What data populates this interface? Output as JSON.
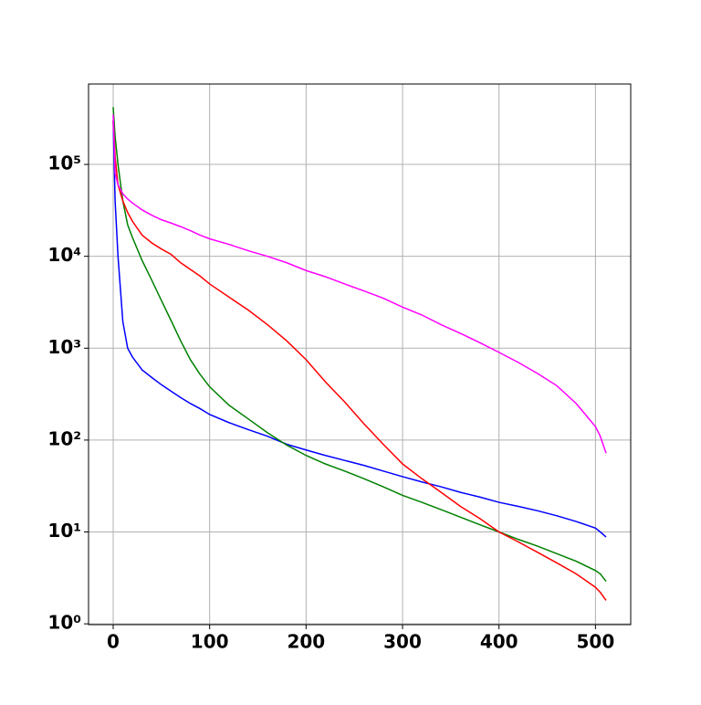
{
  "chart_data": {
    "type": "line",
    "x": [
      0,
      2,
      5,
      10,
      15,
      20,
      30,
      40,
      50,
      60,
      70,
      80,
      90,
      100,
      120,
      140,
      160,
      180,
      200,
      220,
      240,
      260,
      280,
      300,
      320,
      340,
      360,
      380,
      400,
      420,
      440,
      460,
      480,
      500,
      505,
      511
    ],
    "series": [
      {
        "color": "#0000ff",
        "values": [
          300000,
          40000,
          10000,
          1950,
          1000,
          800,
          580,
          480,
          400,
          340,
          290,
          250,
          220,
          190,
          155,
          130,
          110,
          90,
          78,
          68,
          60,
          53,
          46,
          40,
          35,
          31,
          27,
          24,
          21,
          19,
          17,
          15,
          13,
          11,
          10,
          8.8
        ]
      },
      {
        "color": "#008000",
        "values": [
          420000,
          200000,
          100000,
          40000,
          22000,
          16000,
          9000,
          5500,
          3300,
          2000,
          1200,
          750,
          520,
          380,
          240,
          170,
          120,
          88,
          68,
          55,
          46,
          38,
          31,
          25,
          21,
          17.5,
          14.5,
          12,
          10,
          8.3,
          7,
          5.8,
          4.8,
          3.8,
          3.5,
          2.9
        ]
      },
      {
        "color": "#ff0000",
        "values": [
          300000,
          120000,
          60000,
          40000,
          30000,
          24000,
          17000,
          14000,
          12000,
          10500,
          8500,
          7200,
          6100,
          5000,
          3600,
          2600,
          1800,
          1200,
          750,
          430,
          260,
          150,
          90,
          55,
          38,
          27,
          19,
          14,
          10,
          7.8,
          6,
          4.6,
          3.5,
          2.5,
          2.2,
          1.8
        ]
      },
      {
        "color": "#ff00ff",
        "values": [
          350000,
          80000,
          60000,
          48000,
          42000,
          38000,
          32000,
          28000,
          25000,
          23000,
          21000,
          19000,
          17000,
          15500,
          13500,
          11500,
          10000,
          8500,
          7000,
          6000,
          5000,
          4200,
          3500,
          2800,
          2300,
          1800,
          1450,
          1150,
          900,
          700,
          530,
          390,
          250,
          140,
          110,
          72
        ]
      }
    ],
    "xlim": [
      -25.55,
      536.55
    ],
    "xticks": [
      0,
      100,
      200,
      300,
      400,
      500
    ],
    "ylim": [
      0.98,
      750000
    ],
    "yscale": "log",
    "yticks": [
      {
        "value": 1,
        "label": "10⁰"
      },
      {
        "value": 10,
        "label": "10¹"
      },
      {
        "value": 100,
        "label": "10²"
      },
      {
        "value": 1000,
        "label": "10³"
      },
      {
        "value": 10000,
        "label": "10⁴"
      },
      {
        "value": 100000,
        "label": "10⁵"
      }
    ],
    "grid": true
  }
}
